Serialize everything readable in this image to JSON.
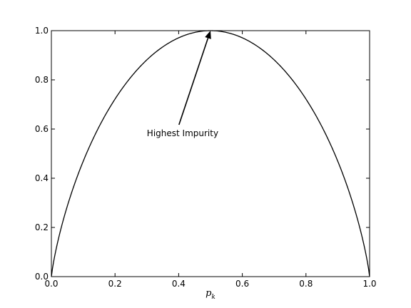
{
  "chart_data": {
    "type": "line",
    "title": "",
    "xlabel": "p",
    "xlabel_subscript": "k",
    "ylabel": "",
    "xlim": [
      0.0,
      1.0
    ],
    "ylim": [
      0.0,
      1.0
    ],
    "grid": false,
    "legend": "none",
    "x_ticks": [
      "0.0",
      "0.2",
      "0.4",
      "0.6",
      "0.8",
      "1.0"
    ],
    "y_ticks": [
      "0.0",
      "0.2",
      "0.4",
      "0.6",
      "0.8",
      "1.0"
    ],
    "series": [
      {
        "x": [
          0.0,
          0.05,
          0.1,
          0.15,
          0.2,
          0.25,
          0.3,
          0.35,
          0.4,
          0.45,
          0.5,
          0.55,
          0.6,
          0.65,
          0.7,
          0.75,
          0.8,
          0.85,
          0.9,
          0.95,
          1.0
        ],
        "y": [
          0.0,
          0.286,
          0.469,
          0.61,
          0.722,
          0.811,
          0.881,
          0.934,
          0.971,
          0.993,
          1.0,
          0.993,
          0.971,
          0.934,
          0.881,
          0.811,
          0.722,
          0.61,
          0.469,
          0.286,
          0.0
        ],
        "color": "#000000"
      }
    ],
    "annotation": {
      "text": "Highest Impurity",
      "xy": [
        0.5,
        1.0
      ],
      "xytext": [
        0.3,
        0.6
      ]
    }
  }
}
